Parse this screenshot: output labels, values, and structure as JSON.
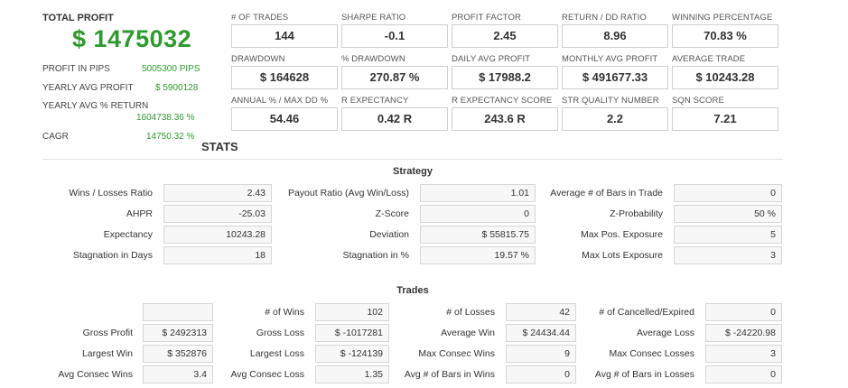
{
  "profit": {
    "title": "TOTAL PROFIT",
    "amount": "$ 1475032",
    "pips_label": "PROFIT IN PIPS",
    "pips_value": "5005300 PIPS",
    "yearly_avg_label": "YEARLY AVG PROFIT",
    "yearly_avg_value": "$ 5900128",
    "yearly_pct_label": "YEARLY AVG % RETURN",
    "yearly_pct_value": "1604738.36 %",
    "cagr_label": "CAGR",
    "cagr_value": "14750.32 %"
  },
  "metrics": [
    {
      "label": "# OF TRADES",
      "value": "144"
    },
    {
      "label": "SHARPE RATIO",
      "value": "-0.1"
    },
    {
      "label": "PROFIT FACTOR",
      "value": "2.45"
    },
    {
      "label": "RETURN / DD RATIO",
      "value": "8.96"
    },
    {
      "label": "WINNING PERCENTAGE",
      "value": "70.83 %"
    },
    {
      "label": "DRAWDOWN",
      "value": "$ 164628"
    },
    {
      "label": "% DRAWDOWN",
      "value": "270.87 %"
    },
    {
      "label": "DAILY AVG PROFIT",
      "value": "$ 17988.2"
    },
    {
      "label": "MONTHLY AVG PROFIT",
      "value": "$ 491677.33"
    },
    {
      "label": "AVERAGE TRADE",
      "value": "$ 10243.28"
    },
    {
      "label": "ANNUAL % / MAX DD %",
      "value": "54.46"
    },
    {
      "label": "R EXPECTANCY",
      "value": "0.42 R"
    },
    {
      "label": "R EXPECTANCY SCORE",
      "value": "243.6 R"
    },
    {
      "label": "STR QUALITY NUMBER",
      "value": "2.2"
    },
    {
      "label": "SQN SCORE",
      "value": "7.21"
    }
  ],
  "stats_heading": "STATS",
  "strategy": {
    "title": "Strategy",
    "rows": [
      [
        {
          "label": "Wins / Losses Ratio",
          "value": "2.43"
        },
        {
          "label": "Payout Ratio (Avg Win/Loss)",
          "value": "1.01"
        },
        {
          "label": "Average # of Bars in Trade",
          "value": "0"
        }
      ],
      [
        {
          "label": "AHPR",
          "value": "-25.03"
        },
        {
          "label": "Z-Score",
          "value": "0"
        },
        {
          "label": "Z-Probability",
          "value": "50 %"
        }
      ],
      [
        {
          "label": "Expectancy",
          "value": "10243.28"
        },
        {
          "label": "Deviation",
          "value": "$ 55815.75"
        },
        {
          "label": "Max Pos. Exposure",
          "value": "5"
        }
      ],
      [
        {
          "label": "Stagnation in Days",
          "value": "18"
        },
        {
          "label": "Stagnation in %",
          "value": "19.57 %"
        },
        {
          "label": "Max Lots Exposure",
          "value": "3"
        }
      ]
    ]
  },
  "trades": {
    "title": "Trades",
    "rows": [
      [
        {
          "label": "",
          "value": ""
        },
        {
          "label": "# of Wins",
          "value": "102"
        },
        {
          "label": "# of Losses",
          "value": "42"
        },
        {
          "label": "# of Cancelled/Expired",
          "value": "0"
        }
      ],
      [
        {
          "label": "Gross Profit",
          "value": "$ 2492313"
        },
        {
          "label": "Gross Loss",
          "value": "$ -1017281"
        },
        {
          "label": "Average Win",
          "value": "$ 24434.44"
        },
        {
          "label": "Average Loss",
          "value": "$ -24220.98"
        }
      ],
      [
        {
          "label": "Largest Win",
          "value": "$ 352876"
        },
        {
          "label": "Largest Loss",
          "value": "$ -124139"
        },
        {
          "label": "Max Consec Wins",
          "value": "9"
        },
        {
          "label": "Max Consec Losses",
          "value": "3"
        }
      ],
      [
        {
          "label": "Avg Consec Wins",
          "value": "3.4"
        },
        {
          "label": "Avg Consec Loss",
          "value": "1.35"
        },
        {
          "label": "Avg # of Bars in Wins",
          "value": "0"
        },
        {
          "label": "Avg # of Bars in Losses",
          "value": "0"
        }
      ]
    ]
  }
}
